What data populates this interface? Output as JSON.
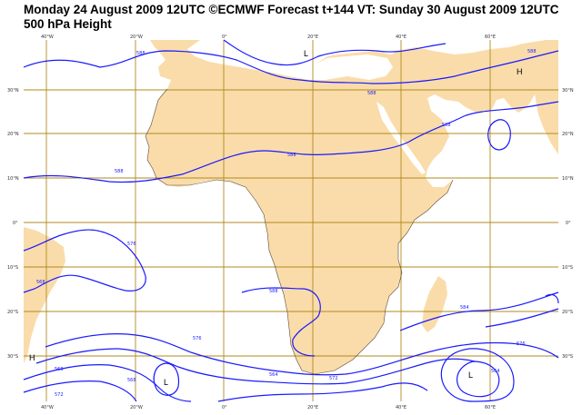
{
  "header": {
    "title_line1": "Monday 24 August 2009 12UTC ©ECMWF Forecast t+144 VT: Sunday 30 August 2009 12UTC",
    "title_line2": "500 hPa Height"
  },
  "map": {
    "colors": {
      "land": "#fadcaa",
      "sea": "#ffffff",
      "grid": "#b08a1e",
      "contour": "#1a1aff",
      "coast": "#5a4a3a"
    },
    "lon_labels_top": [
      "40°W",
      "20°W",
      "0°",
      "20°E",
      "40°E",
      "60°E"
    ],
    "lon_labels_bottom": [
      "40°W",
      "20°W",
      "0°",
      "20°E",
      "40°E",
      "60°E"
    ],
    "lat_labels_left": [
      "30°N",
      "20°N",
      "10°N",
      "0°",
      "10°S",
      "20°S",
      "30°S"
    ],
    "lat_labels_right": [
      "30°N",
      "20°N",
      "10°N",
      "0°",
      "10°S",
      "20°S",
      "30°S"
    ],
    "contour_labels": [
      "588",
      "588",
      "588",
      "588",
      "588",
      "588",
      "588",
      "584",
      "576",
      "576",
      "564",
      "564",
      "568",
      "568",
      "572",
      "572",
      "576",
      "568"
    ],
    "centers": [
      "L",
      "L",
      "L",
      "H",
      "H"
    ]
  }
}
